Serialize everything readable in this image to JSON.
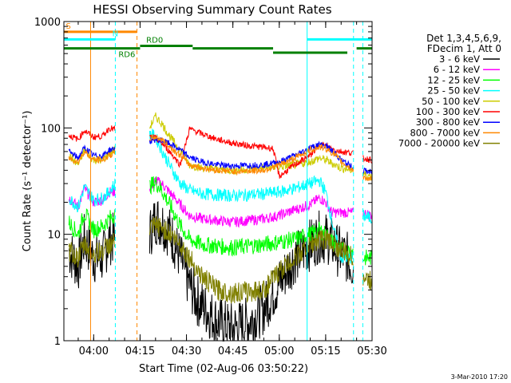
{
  "chart_data": {
    "type": "line",
    "title": "HESSI Observing Summary Count Rates",
    "xlabel": "Start Time (02-Aug-06 03:50:22)",
    "ylabel": "Count Rate (s⁻¹ detector⁻¹)",
    "y_scale": "log",
    "ylim": [
      1,
      1000
    ],
    "xlim": [
      "03:50:22",
      "05:30:00"
    ],
    "x_ticks": [
      "04:00",
      "04:15",
      "04:30",
      "04:45",
      "05:00",
      "05:15",
      "05:30"
    ],
    "y_ticks": [
      "1",
      "10",
      "100",
      "1000"
    ],
    "grid": false,
    "legend": {
      "position": "right",
      "header": [
        "Det 1,3,4,5,6,9,",
        "FDecim 1, Att 0"
      ],
      "entries": [
        {
          "label": "3 - 6 keV",
          "color": "#000000"
        },
        {
          "label": "6 - 12 keV",
          "color": "#ff00ff"
        },
        {
          "label": "12 - 25 keV",
          "color": "#00ff00"
        },
        {
          "label": "25 - 50 keV",
          "color": "#00ffff"
        },
        {
          "label": "50 - 100 keV",
          "color": "#cccc00"
        },
        {
          "label": "100 - 300 keV",
          "color": "#ff0000"
        },
        {
          "label": "300 - 800 keV",
          "color": "#0000ff"
        },
        {
          "label": "800 - 7000 keV",
          "color": "#ff8800"
        },
        {
          "label": "7000 - 20000 keV",
          "color": "#808000"
        }
      ]
    },
    "data_gaps": [
      [
        "04:07",
        "04:18"
      ],
      [
        "05:24",
        "05:27"
      ]
    ],
    "series": [
      {
        "name": "3 - 6 keV",
        "color": "#000000",
        "noise": 0.25,
        "points": [
          [
            "03:52",
            7
          ],
          [
            "03:55",
            5
          ],
          [
            "03:57",
            9
          ],
          [
            "04:00",
            6
          ],
          [
            "04:03",
            6
          ],
          [
            "04:05",
            9
          ],
          [
            "04:18",
            10
          ],
          [
            "04:20",
            14
          ],
          [
            "04:22",
            13
          ],
          [
            "04:25",
            10
          ],
          [
            "04:28",
            6
          ],
          [
            "04:30",
            4
          ],
          [
            "04:33",
            2.5
          ],
          [
            "04:36",
            2
          ],
          [
            "04:40",
            1.5
          ],
          [
            "04:45",
            1.3
          ],
          [
            "04:50",
            1.5
          ],
          [
            "04:55",
            2
          ],
          [
            "05:00",
            3.5
          ],
          [
            "05:05",
            6
          ],
          [
            "05:10",
            8
          ],
          [
            "05:13",
            9.5
          ],
          [
            "05:16",
            9
          ],
          [
            "05:19",
            7
          ],
          [
            "05:22",
            6
          ],
          [
            "05:24",
            5
          ]
        ]
      },
      {
        "name": "6 - 12 keV",
        "color": "#ff00ff",
        "noise": 0.05,
        "points": [
          [
            "03:52",
            22
          ],
          [
            "03:55",
            18
          ],
          [
            "03:57",
            27
          ],
          [
            "04:00",
            20
          ],
          [
            "04:03",
            21
          ],
          [
            "04:05",
            25
          ],
          [
            "04:18",
            27
          ],
          [
            "04:20",
            32
          ],
          [
            "04:22",
            30
          ],
          [
            "04:25",
            24
          ],
          [
            "04:28",
            19
          ],
          [
            "04:31",
            15
          ],
          [
            "04:35",
            14
          ],
          [
            "04:45",
            13
          ],
          [
            "04:55",
            14
          ],
          [
            "05:00",
            15
          ],
          [
            "05:05",
            17
          ],
          [
            "05:10",
            19
          ],
          [
            "05:13",
            22
          ],
          [
            "05:15",
            20
          ],
          [
            "05:17",
            16
          ],
          [
            "05:20",
            16
          ],
          [
            "05:24",
            16
          ],
          [
            "05:27",
            16
          ],
          [
            "05:30",
            15
          ]
        ]
      },
      {
        "name": "12 - 25 keV",
        "color": "#00ff00",
        "noise": 0.08,
        "points": [
          [
            "03:52",
            13
          ],
          [
            "03:55",
            10
          ],
          [
            "03:57",
            16
          ],
          [
            "04:00",
            11
          ],
          [
            "04:03",
            12
          ],
          [
            "04:05",
            14
          ],
          [
            "04:18",
            28
          ],
          [
            "04:20",
            31
          ],
          [
            "04:22",
            26
          ],
          [
            "04:25",
            18
          ],
          [
            "04:28",
            12
          ],
          [
            "04:31",
            9
          ],
          [
            "04:35",
            8
          ],
          [
            "04:45",
            7.5
          ],
          [
            "04:55",
            8
          ],
          [
            "05:00",
            8.5
          ],
          [
            "05:05",
            9
          ],
          [
            "05:10",
            10
          ],
          [
            "05:13",
            11
          ],
          [
            "05:15",
            10
          ],
          [
            "05:18",
            8
          ],
          [
            "05:20",
            7
          ],
          [
            "05:24",
            7
          ],
          [
            "05:27",
            6
          ],
          [
            "05:30",
            6
          ]
        ]
      },
      {
        "name": "25 - 50 keV",
        "color": "#00ffff",
        "noise": 0.06,
        "points": [
          [
            "03:52",
            22
          ],
          [
            "03:55",
            18
          ],
          [
            "03:57",
            28
          ],
          [
            "04:00",
            21
          ],
          [
            "04:03",
            22
          ],
          [
            "04:05",
            25
          ],
          [
            "04:18",
            90
          ],
          [
            "04:20",
            82
          ],
          [
            "04:22",
            62
          ],
          [
            "04:25",
            42
          ],
          [
            "04:28",
            30
          ],
          [
            "04:31",
            26
          ],
          [
            "04:35",
            24
          ],
          [
            "04:45",
            23
          ],
          [
            "04:55",
            24
          ],
          [
            "05:00",
            25
          ],
          [
            "05:05",
            27
          ],
          [
            "05:10",
            30
          ],
          [
            "05:13",
            32
          ],
          [
            "05:15",
            25
          ],
          [
            "05:18",
            10
          ],
          [
            "05:20",
            6
          ],
          [
            "05:24",
            6
          ],
          [
            "05:27",
            15
          ],
          [
            "05:30",
            14
          ]
        ]
      },
      {
        "name": "50 - 100 keV",
        "color": "#cccc00",
        "noise": 0.04,
        "points": [
          [
            "03:52",
            55
          ],
          [
            "03:55",
            45
          ],
          [
            "03:57",
            62
          ],
          [
            "04:00",
            50
          ],
          [
            "04:03",
            50
          ],
          [
            "04:05",
            58
          ],
          [
            "04:18",
            100
          ],
          [
            "04:20",
            128
          ],
          [
            "04:22",
            110
          ],
          [
            "04:25",
            80
          ],
          [
            "04:28",
            62
          ],
          [
            "04:31",
            45
          ],
          [
            "04:35",
            42
          ],
          [
            "04:45",
            40
          ],
          [
            "04:55",
            42
          ],
          [
            "05:00",
            43
          ],
          [
            "05:05",
            45
          ],
          [
            "05:10",
            48
          ],
          [
            "05:13",
            52
          ],
          [
            "05:15",
            50
          ],
          [
            "05:18",
            45
          ],
          [
            "05:20",
            42
          ],
          [
            "05:24",
            40
          ],
          [
            "05:27",
            37
          ],
          [
            "05:30",
            35
          ]
        ]
      },
      {
        "name": "100 - 300 keV",
        "color": "#ff0000",
        "noise": 0.03,
        "points": [
          [
            "03:52",
            85
          ],
          [
            "03:55",
            78
          ],
          [
            "03:57",
            95
          ],
          [
            "04:00",
            82
          ],
          [
            "04:03",
            84
          ],
          [
            "04:05",
            100
          ],
          [
            "04:18",
            82
          ],
          [
            "04:20",
            80
          ],
          [
            "04:22",
            72
          ],
          [
            "04:25",
            58
          ],
          [
            "04:28",
            45
          ],
          [
            "04:31",
            98
          ],
          [
            "04:35",
            88
          ],
          [
            "04:40",
            78
          ],
          [
            "04:45",
            72
          ],
          [
            "04:50",
            68
          ],
          [
            "04:55",
            66
          ],
          [
            "04:58",
            64
          ],
          [
            "05:00",
            35
          ],
          [
            "05:05",
            45
          ],
          [
            "05:10",
            55
          ],
          [
            "05:13",
            70
          ],
          [
            "05:15",
            68
          ],
          [
            "05:18",
            62
          ],
          [
            "05:20",
            60
          ],
          [
            "05:24",
            58
          ],
          [
            "05:27",
            52
          ],
          [
            "05:30",
            50
          ]
        ]
      },
      {
        "name": "300 - 800 keV",
        "color": "#0000ff",
        "noise": 0.03,
        "points": [
          [
            "03:52",
            60
          ],
          [
            "03:55",
            52
          ],
          [
            "03:57",
            65
          ],
          [
            "04:00",
            55
          ],
          [
            "04:03",
            55
          ],
          [
            "04:05",
            62
          ],
          [
            "04:18",
            75
          ],
          [
            "04:20",
            78
          ],
          [
            "04:22",
            76
          ],
          [
            "04:25",
            70
          ],
          [
            "04:28",
            62
          ],
          [
            "04:31",
            53
          ],
          [
            "04:35",
            48
          ],
          [
            "04:40",
            45
          ],
          [
            "04:45",
            44
          ],
          [
            "04:55",
            45
          ],
          [
            "05:00",
            48
          ],
          [
            "05:05",
            55
          ],
          [
            "05:10",
            65
          ],
          [
            "05:13",
            70
          ],
          [
            "05:15",
            68
          ],
          [
            "05:18",
            58
          ],
          [
            "05:20",
            50
          ],
          [
            "05:24",
            42
          ],
          [
            "05:27",
            40
          ],
          [
            "05:30",
            38
          ]
        ]
      },
      {
        "name": "800 - 7000 keV",
        "color": "#ff8800",
        "noise": 0.03,
        "points": [
          [
            "03:52",
            52
          ],
          [
            "03:55",
            48
          ],
          [
            "03:57",
            60
          ],
          [
            "04:00",
            50
          ],
          [
            "04:03",
            50
          ],
          [
            "04:05",
            55
          ],
          [
            "04:18",
            80
          ],
          [
            "04:20",
            82
          ],
          [
            "04:22",
            78
          ],
          [
            "04:25",
            65
          ],
          [
            "04:28",
            55
          ],
          [
            "04:31",
            45
          ],
          [
            "04:35",
            42
          ],
          [
            "04:40",
            40
          ],
          [
            "04:45",
            39
          ],
          [
            "04:55",
            40
          ],
          [
            "05:00",
            45
          ],
          [
            "05:05",
            52
          ],
          [
            "05:10",
            62
          ],
          [
            "05:13",
            66
          ],
          [
            "05:15",
            64
          ],
          [
            "05:18",
            56
          ],
          [
            "05:20",
            48
          ],
          [
            "05:24",
            40
          ],
          [
            "05:27",
            35
          ],
          [
            "05:30",
            32
          ]
        ]
      },
      {
        "name": "7000 - 20000 keV",
        "color": "#808000",
        "noise": 0.1,
        "points": [
          [
            "03:52",
            7
          ],
          [
            "03:55",
            6
          ],
          [
            "03:57",
            8
          ],
          [
            "04:00",
            6.5
          ],
          [
            "04:03",
            7
          ],
          [
            "04:05",
            8
          ],
          [
            "04:18",
            11
          ],
          [
            "04:20",
            12
          ],
          [
            "04:22",
            11.5
          ],
          [
            "04:25",
            10
          ],
          [
            "04:28",
            8
          ],
          [
            "04:31",
            6
          ],
          [
            "04:35",
            4
          ],
          [
            "04:40",
            3
          ],
          [
            "04:45",
            2.8
          ],
          [
            "04:55",
            3
          ],
          [
            "05:00",
            4.5
          ],
          [
            "05:05",
            6
          ],
          [
            "05:10",
            8
          ],
          [
            "05:13",
            9
          ],
          [
            "05:15",
            9
          ],
          [
            "05:18",
            8
          ],
          [
            "05:20",
            7
          ],
          [
            "05:24",
            6
          ],
          [
            "05:27",
            4
          ],
          [
            "05:30",
            3.5
          ]
        ]
      }
    ],
    "vertical_markers": [
      {
        "time": "03:59",
        "color": "#ff8800",
        "style": "solid"
      },
      {
        "time": "04:07",
        "color": "#00ffff",
        "style": "dashed"
      },
      {
        "time": "04:14",
        "color": "#ff8800",
        "style": "dashed"
      },
      {
        "time": "05:09",
        "color": "#00ffff",
        "style": "solid"
      },
      {
        "time": "05:24",
        "color": "#00ffff",
        "style": "dashed"
      },
      {
        "time": "05:27",
        "color": "#00ffff",
        "style": "dashed"
      }
    ],
    "state_bars": [
      {
        "label": "S",
        "color": "#ff8800",
        "y": 800,
        "start": "03:50:22",
        "end": "04:14",
        "label_at": "03:51"
      },
      {
        "label": "N",
        "color": "#00ffff",
        "y": 680,
        "start": "03:50:22",
        "end": "04:07",
        "label_at": "04:06"
      },
      {
        "label": "",
        "color": "#00ffff",
        "y": 680,
        "start": "05:09",
        "end": "05:30",
        "label_at": ""
      },
      {
        "label": "RD6",
        "color": "#008000",
        "y": 560,
        "start": "03:50:22",
        "end": "04:15",
        "label_at": "04:08"
      },
      {
        "label": "RD0",
        "color": "#008000",
        "y": 590,
        "start": "04:15",
        "end": "04:32",
        "label_at": "04:17"
      },
      {
        "label": "",
        "color": "#008000",
        "y": 560,
        "start": "04:32",
        "end": "04:58",
        "label_at": ""
      },
      {
        "label": "",
        "color": "#008000",
        "y": 510,
        "start": "04:58",
        "end": "05:22",
        "label_at": ""
      },
      {
        "label": "",
        "color": "#008000",
        "y": 560,
        "start": "05:25",
        "end": "05:30",
        "label_at": ""
      }
    ],
    "footer_date": "3-Mar-2010 17:20"
  }
}
